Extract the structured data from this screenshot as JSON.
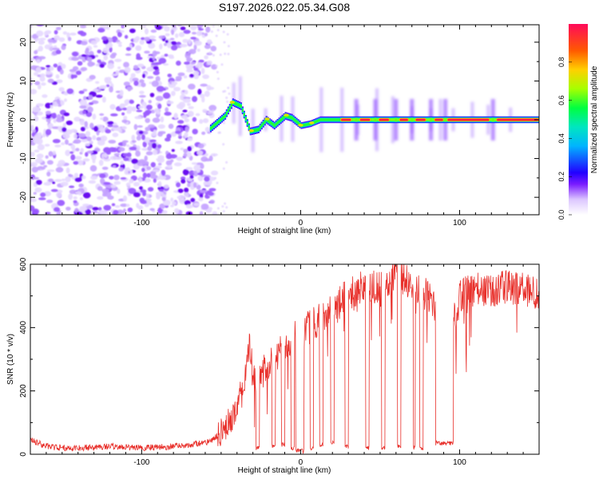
{
  "title": "S197.2026.022.05.34.G08",
  "chart_data": [
    {
      "type": "heatmap",
      "xlabel": "Height of straight line (km)",
      "ylabel": "Frequency (Hz)",
      "xlim": [
        -170,
        150
      ],
      "ylim": [
        -24.5,
        24.5
      ],
      "xticks": [
        -100,
        0,
        100
      ],
      "yticks": [
        -20,
        -10,
        0,
        10,
        20
      ],
      "colorbar": {
        "label": "Normalized spectral amplitude",
        "range": [
          0,
          1
        ],
        "ticks": [
          "0.0",
          "0.2",
          "0.4",
          "0.6",
          "0.8"
        ],
        "colormap": [
          "#ffffff",
          "#6600ff",
          "#0000ff",
          "#00ccff",
          "#00ff66",
          "#ccff00",
          "#ff9900",
          "#ff0066"
        ]
      },
      "features": {
        "noise_region_x": [
          -170,
          -57
        ],
        "signal_track": [
          {
            "x": -55,
            "freq": -1.5
          },
          {
            "x": -48,
            "freq": 1.0
          },
          {
            "x": -43,
            "freq": 4.5
          },
          {
            "x": -38,
            "freq": 3.5
          },
          {
            "x": -32,
            "freq": -3.0
          },
          {
            "x": -27,
            "freq": -2.5
          },
          {
            "x": -22,
            "freq": 0.0
          },
          {
            "x": -17,
            "freq": -1.5
          },
          {
            "x": -10,
            "freq": 1.0
          },
          {
            "x": -6,
            "freq": 0.5
          },
          {
            "x": 0,
            "freq": -1.5
          },
          {
            "x": 6,
            "freq": -1.0
          },
          {
            "x": 12,
            "freq": 0.0
          },
          {
            "x": 20,
            "freq": 0.0
          },
          {
            "x": 150,
            "freq": 0.0
          }
        ],
        "stationary_start_x": 25,
        "bright_segments": [
          {
            "x0": 25,
            "x1": 32
          },
          {
            "x0": 37,
            "x1": 44
          },
          {
            "x0": 49,
            "x1": 56
          },
          {
            "x0": 62,
            "x1": 68
          },
          {
            "x0": 72,
            "x1": 79
          },
          {
            "x0": 84,
            "x1": 90
          },
          {
            "x0": 92,
            "x1": 119
          },
          {
            "x0": 123,
            "x1": 150
          }
        ],
        "gaps_x": [
          35,
          47,
          60,
          70,
          82,
          91,
          121
        ]
      }
    },
    {
      "type": "line",
      "xlabel": "Height of straight line (km)",
      "ylabel": "SNR (10 * v/v)",
      "xlim": [
        -170,
        150
      ],
      "ylim": [
        0,
        600
      ],
      "xticks": [
        -100,
        0,
        100
      ],
      "yticks": [
        0,
        200,
        400,
        600
      ],
      "color": "#e8302b",
      "series": [
        {
          "name": "SNR",
          "x": [
            -170,
            -160,
            -150,
            -140,
            -130,
            -120,
            -110,
            -100,
            -90,
            -80,
            -70,
            -62,
            -57,
            -52,
            -48,
            -44,
            -40,
            -36,
            -32,
            -30,
            -28,
            -25,
            -20,
            -15,
            -10,
            -5,
            0,
            5,
            10,
            15,
            20,
            25,
            30,
            35,
            40,
            50,
            60,
            70,
            80,
            85,
            88,
            92,
            98,
            100,
            110,
            120,
            130,
            140,
            150
          ],
          "values": [
            45,
            25,
            20,
            20,
            22,
            25,
            22,
            20,
            22,
            25,
            30,
            35,
            40,
            60,
            80,
            110,
            150,
            220,
            340,
            250,
            230,
            240,
            290,
            310,
            340,
            370,
            380,
            400,
            420,
            430,
            470,
            480,
            520,
            500,
            540,
            520,
            560,
            540,
            500,
            470,
            420,
            400,
            440,
            500,
            520,
            510,
            530,
            520,
            500
          ]
        }
      ],
      "dropouts": [
        {
          "x0": -28,
          "x1": -26,
          "value": 20
        },
        {
          "x0": -18,
          "x1": -16,
          "value": 25
        },
        {
          "x0": -12,
          "x1": -10,
          "value": 30
        },
        {
          "x0": -6,
          "x1": -4,
          "value": 20
        },
        {
          "x0": -3,
          "x1": 2,
          "value": 10
        },
        {
          "x0": 6,
          "x1": 8,
          "value": 20
        },
        {
          "x0": 12,
          "x1": 14,
          "value": 30
        },
        {
          "x0": 19,
          "x1": 21,
          "value": 35
        },
        {
          "x0": 28,
          "x1": 30,
          "value": 25
        },
        {
          "x0": 41,
          "x1": 43,
          "value": 20
        },
        {
          "x0": 51,
          "x1": 53,
          "value": 20
        },
        {
          "x0": 61,
          "x1": 63,
          "value": 25
        },
        {
          "x0": 71,
          "x1": 72,
          "value": 20
        },
        {
          "x0": 75,
          "x1": 77,
          "value": 20
        },
        {
          "x0": 85,
          "x1": 96,
          "value": 35
        }
      ]
    }
  ]
}
